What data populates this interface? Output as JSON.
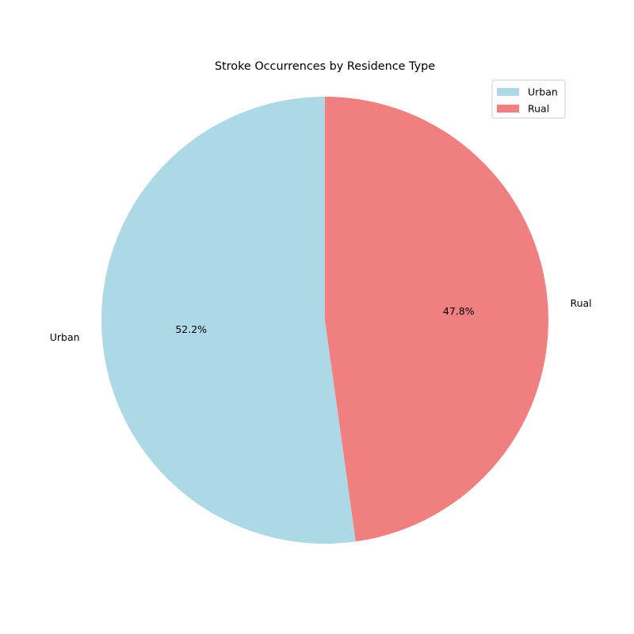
{
  "chart_data": {
    "type": "pie",
    "title": "Stroke Occurrences by Residence Type",
    "categories": [
      "Urban",
      "Rual"
    ],
    "values": [
      52.2,
      47.8
    ],
    "value_labels": [
      "52.2%",
      "47.8%"
    ],
    "colors": [
      "#add8e6",
      "#f08080"
    ],
    "start_angle_deg": 90,
    "direction": "counterclockwise",
    "legend": {
      "position": "top-right",
      "entries": [
        "Urban",
        "Rual"
      ]
    }
  }
}
